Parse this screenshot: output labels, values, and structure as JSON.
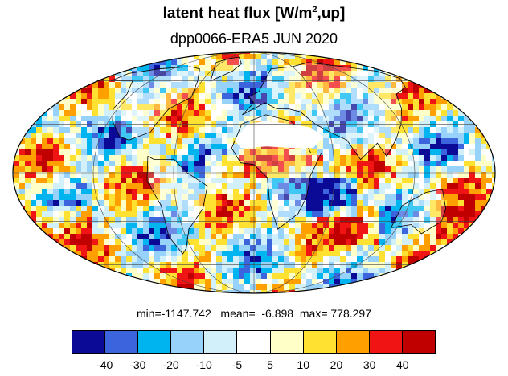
{
  "title": {
    "main_prefix": "latent heat flux [W/m",
    "main_sup": "2",
    "main_suffix": ",up]",
    "subtitle": "dpp0066-ERA5  JUN 2020"
  },
  "stats": {
    "text": "min=-1147.742   mean=  -6.898  max= 778.297"
  },
  "colorbar": {
    "colors": [
      "#0a0a96",
      "#3c64dc",
      "#00b4f0",
      "#96d2fa",
      "#d2f0fa",
      "#ffffff",
      "#ffffc8",
      "#ffe132",
      "#ffa000",
      "#f01414",
      "#c00000"
    ],
    "tick_labels": [
      "-40",
      "-30",
      "-20",
      "-10",
      "-5",
      "5",
      "10",
      "20",
      "30",
      "40"
    ]
  },
  "map": {
    "projection": "mollweide",
    "grid": true,
    "coastlines": true,
    "palette_positive": [
      "#ffffc8",
      "#ffe132",
      "#ffa000",
      "#f01414",
      "#c00000"
    ],
    "palette_negative": [
      "#0a0a96",
      "#3c64dc",
      "#00b4f0",
      "#96d2fa",
      "#d2f0fa"
    ],
    "palette_zero": "#ffffff"
  }
}
